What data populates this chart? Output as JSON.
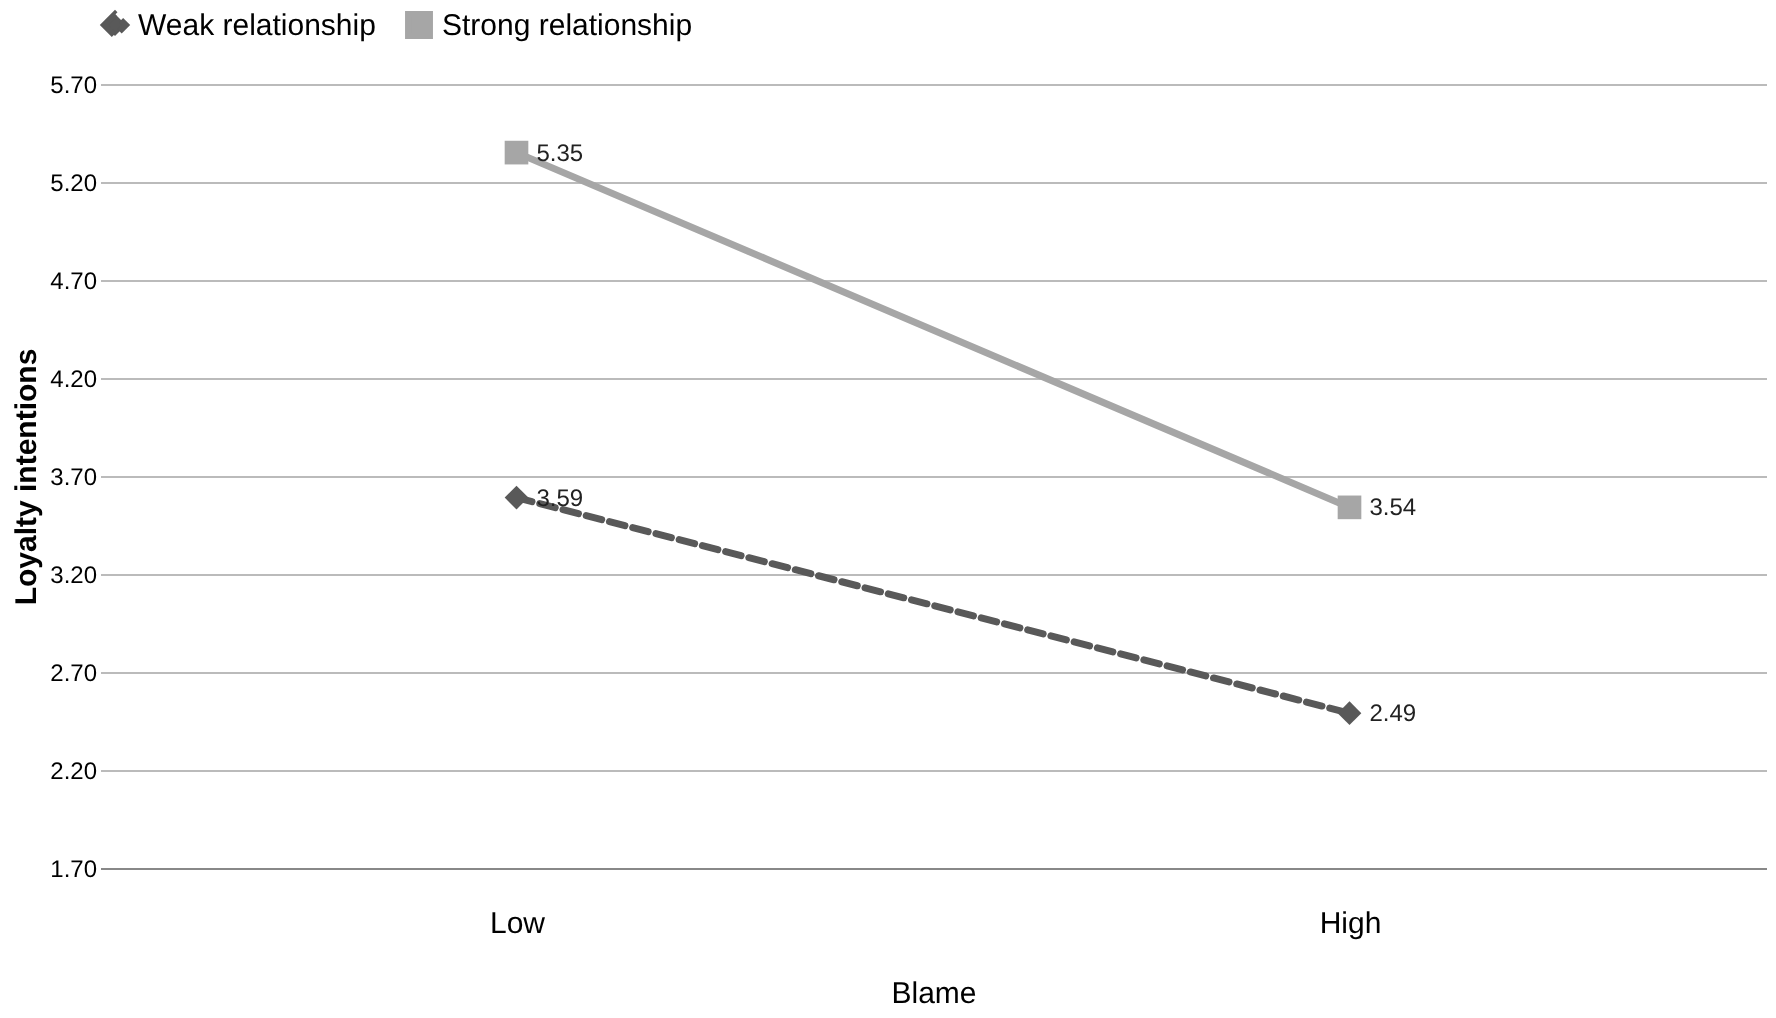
{
  "chart_data": {
    "type": "line",
    "xlabel": "Blame",
    "ylabel": "Loyalty  intentions",
    "categories": [
      "Low",
      "High"
    ],
    "series": [
      {
        "name": "Weak relationship",
        "color": "#595959",
        "values": [
          3.59,
          2.49
        ],
        "marker": "diamond",
        "line_style": "dashed"
      },
      {
        "name": "Strong relationship",
        "color": "#a6a6a6",
        "values": [
          5.35,
          3.54
        ],
        "marker": "square",
        "line_style": "solid"
      }
    ],
    "ylim": [
      1.7,
      5.7
    ],
    "yticks": [
      {
        "value": 1.7,
        "label": "1.70"
      },
      {
        "value": 2.2,
        "label": "2.20"
      },
      {
        "value": 2.7,
        "label": "2.70"
      },
      {
        "value": 3.2,
        "label": "3.20"
      },
      {
        "value": 3.7,
        "label": "3.70"
      },
      {
        "value": 4.2,
        "label": "4.20"
      },
      {
        "value": 4.7,
        "label": "4.70"
      },
      {
        "value": 5.2,
        "label": "5.20"
      },
      {
        "value": 5.7,
        "label": "5.70"
      }
    ],
    "grid": "y",
    "legend": "top",
    "data_labels": true
  }
}
